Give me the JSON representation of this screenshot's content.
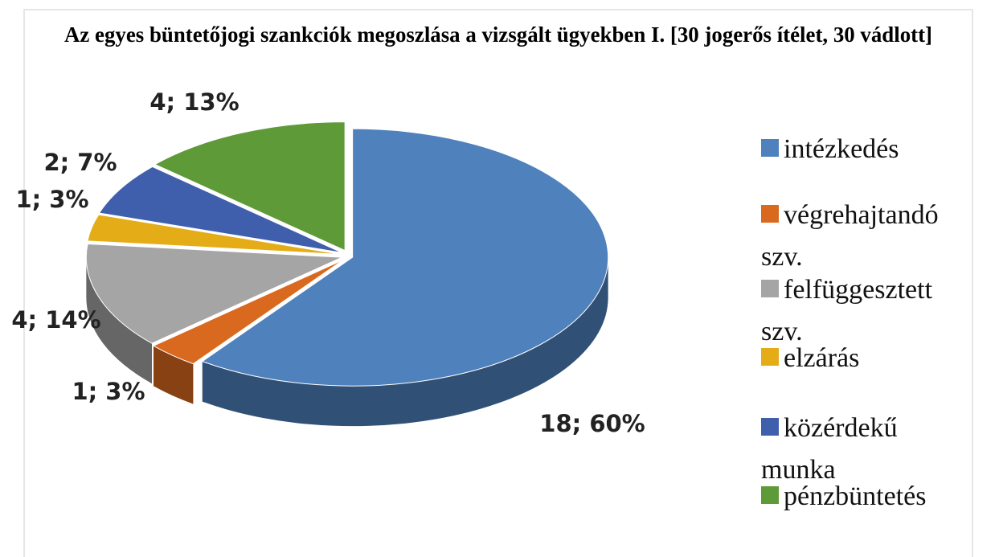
{
  "chart_data": {
    "type": "pie3d",
    "title": "Az egyes büntetőjogi szankciók megoszlása a vizsgált ügyekben I. [30 jogerős ítélet, 30 vádlott]",
    "series": [
      {
        "name": "intézkedés",
        "color": "#4f81bd"
      },
      {
        "name": "végrehajtandó szv.",
        "color": "#d9691e"
      },
      {
        "name": "felfüggesztett szv.",
        "color": "#a5a5a5"
      },
      {
        "name": "elzárás",
        "color": "#e4ac17"
      },
      {
        "name": "közérdekű munka",
        "color": "#3f5fad"
      },
      {
        "name": "pénzbüntetés",
        "color": "#5f9a39"
      }
    ],
    "values": [
      18,
      1,
      4,
      1,
      2,
      4
    ],
    "value_labels": [
      "18; 60%",
      "1; 3%",
      "4; 14%",
      "1; 3%",
      "2; 7%",
      "4; 13%"
    ]
  }
}
